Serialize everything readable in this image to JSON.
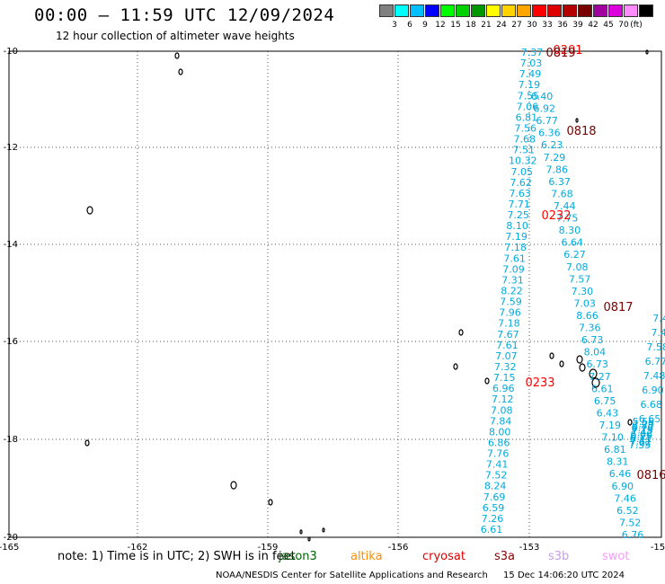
{
  "header": {
    "title": "00:00 – 11:59 UTC 12/09/2024",
    "subtitle": "12 hour collection of altimeter wave heights"
  },
  "colorbar": {
    "unit": "(ft)",
    "colors": [
      "#808080",
      "#00ffff",
      "#00bfff",
      "#0000ff",
      "#00ff00",
      "#00d200",
      "#009600",
      "#ffff00",
      "#ffd200",
      "#ffa500",
      "#ff0000",
      "#dc0000",
      "#b40000",
      "#780000",
      "#a000a0",
      "#dc00dc",
      "#ff8cff",
      "#000000"
    ],
    "labels": [
      "3",
      "6",
      "9",
      "12",
      "15",
      "18",
      "21",
      "24",
      "27",
      "30",
      "33",
      "36",
      "39",
      "42",
      "45",
      "70"
    ]
  },
  "axes": {
    "lon_ticks": [
      "-165",
      "-162",
      "-159",
      "-156",
      "-153",
      "-15"
    ],
    "lat_ticks": [
      "-10",
      "-12",
      "-14",
      "-16",
      "-18",
      "-20"
    ]
  },
  "pass_labels": [
    {
      "text": "0818",
      "color": "#780000"
    },
    {
      "text": "0232",
      "color": "#ff0000"
    },
    {
      "text": "0817",
      "color": "#780000"
    },
    {
      "text": "0233",
      "color": "#ff0000"
    },
    {
      "text": "0816",
      "color": "#780000"
    },
    {
      "text": "0201",
      "color": "#ff0000"
    },
    {
      "text": "0819",
      "color": "#780000"
    }
  ],
  "track_a": [
    "7.37",
    "7.03",
    "7.49",
    "7.19",
    "7.55",
    "7.06",
    "6.81",
    "7.56",
    "7.68",
    "7.51",
    "10.32",
    "7.05",
    "7.62",
    "7.63",
    "7.71",
    "7.25",
    "8.10",
    "7.19",
    "7.18",
    "7.61",
    "7.09",
    "7.31",
    "8.22",
    "7.59",
    "7.96",
    "7.18",
    "7.67",
    "7.61",
    "7.07",
    "7.32",
    "7.15",
    "6.96",
    "7.12",
    "7.08",
    "7.84",
    "8.00",
    "6.86",
    "7.76",
    "7.41",
    "7.52",
    "8.24",
    "7.69",
    "6.59",
    "7.26",
    "6.61"
  ],
  "track_b": [
    "6.40",
    "6.92",
    "6.77",
    "6.36",
    "6.23",
    "7.29",
    "7.86",
    "6.37",
    "7.68",
    "7.44",
    "7.75",
    "8.30",
    "6.64",
    "6.27",
    "7.08",
    "7.57",
    "7.30",
    "7.03",
    "8.66",
    "7.36",
    "6.73",
    "8.04",
    "6.73",
    "7.27",
    "6.61",
    "6.75",
    "6.43",
    "7.19",
    "7.10",
    "6.81",
    "8.31",
    "6.46",
    "6.90",
    "7.46",
    "6.52",
    "7.52",
    "6.76"
  ],
  "track_c": [
    "7.35",
    "7.62",
    "7.31",
    "6.11",
    "6.25",
    "6.66",
    "7.42",
    "7.13",
    "6.76",
    "6.55",
    "7.25",
    "5.55"
  ],
  "track_d": [
    "7.4",
    "7.4",
    "7.58",
    "6.77",
    "7.48",
    "6.90",
    "6.68",
    "6.65"
  ],
  "note": {
    "prefix": "note:  1) Time is in UTC;  2) SWH is in feet",
    "sats": [
      {
        "name": "jason3",
        "color": "#006400"
      },
      {
        "name": "altika",
        "color": "#ff8c00"
      },
      {
        "name": "cryosat",
        "color": "#dc0000"
      },
      {
        "name": "s3a",
        "color": "#8b0000"
      },
      {
        "name": "s3b",
        "color": "#c8a0e6"
      },
      {
        "name": "swot",
        "color": "#ff96ff"
      }
    ]
  },
  "footer": {
    "credit": "NOAA/NESDIS Center for Satellite Applications and Research",
    "timestamp": "15 Dec 14:06:20 UTC 2024"
  }
}
